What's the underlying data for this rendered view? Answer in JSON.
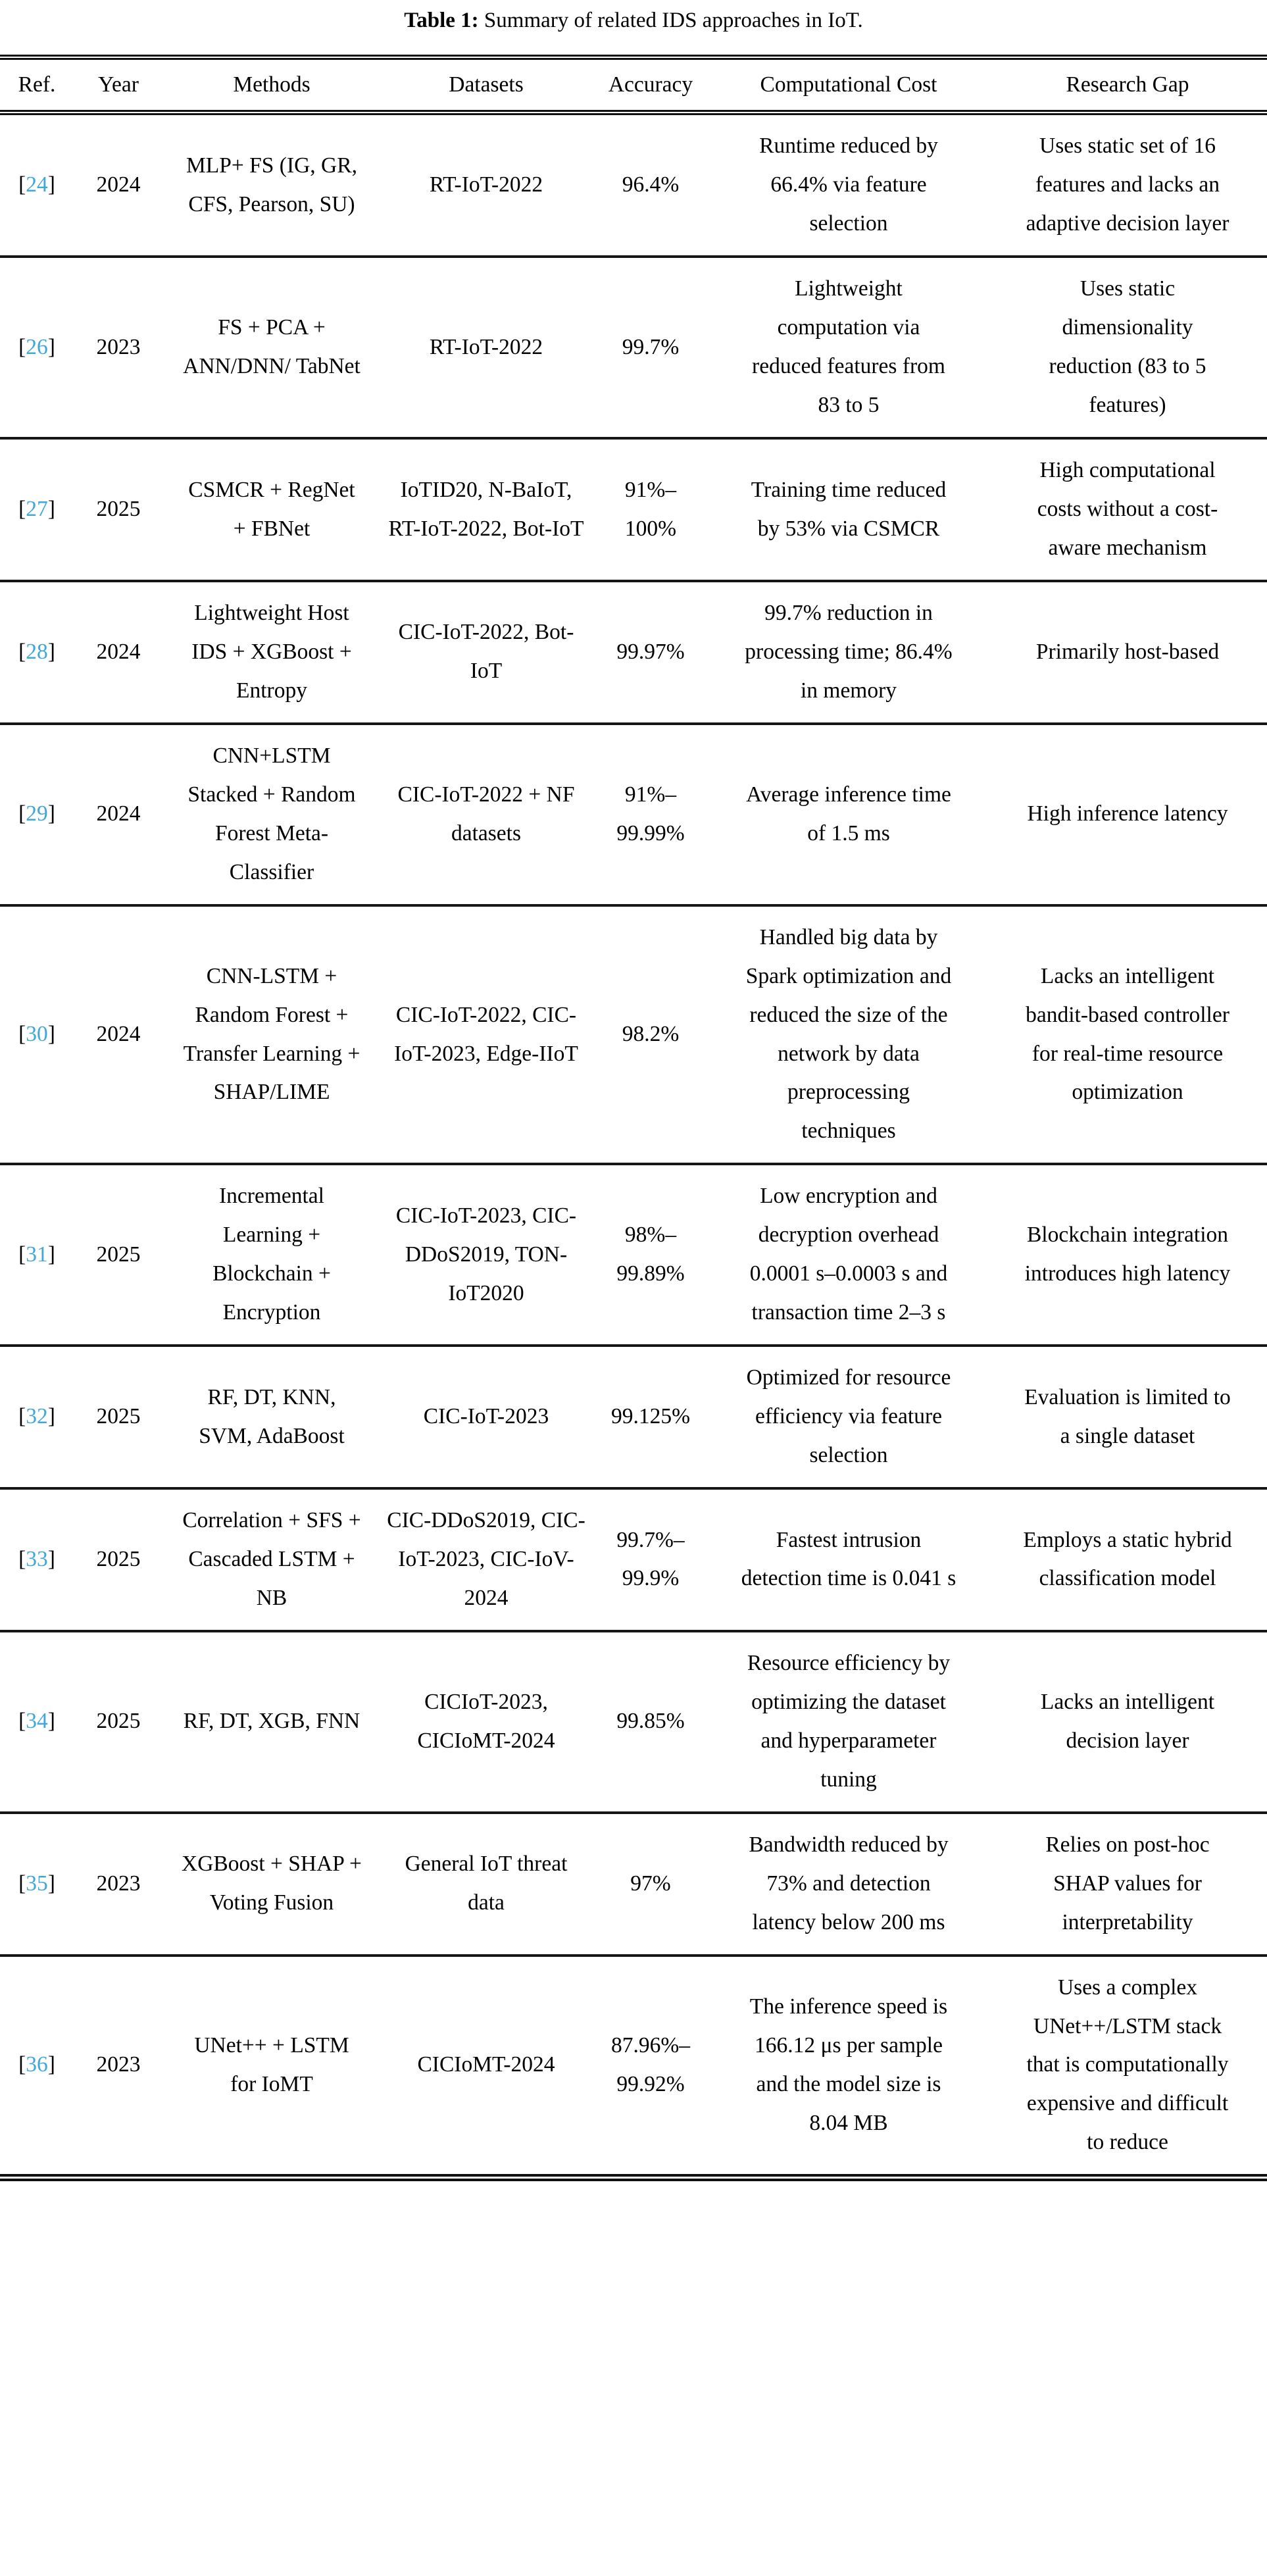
{
  "caption": {
    "label": "Table 1:",
    "text": "Summary of related IDS approaches in IoT."
  },
  "colors": {
    "citation_blue": "#41a7da",
    "text": "#000000",
    "rule": "#101010"
  },
  "table": {
    "brackets": {
      "open": "[",
      "close": "]"
    },
    "columns": [
      "Ref.",
      "Year",
      "Methods",
      "Datasets",
      "Accuracy",
      "Computational Cost",
      "Research Gap"
    ],
    "rows": [
      {
        "ref": "24",
        "year": "2024",
        "methods": "MLP+ FS (IG, GR, CFS, Pearson, SU)",
        "datasets": "RT-IoT-2022",
        "accuracy": "96.4%",
        "cost": "Runtime reduced by 66.4% via feature selection",
        "gap": "Uses static set of 16 features and lacks an adaptive decision layer"
      },
      {
        "ref": "26",
        "year": "2023",
        "methods": "FS + PCA + ANN/DNN/ TabNet",
        "datasets": "RT-IoT-2022",
        "accuracy": "99.7%",
        "cost": "Lightweight computation via reduced features from 83 to 5",
        "gap": "Uses static dimensionality reduction (83 to 5 features)"
      },
      {
        "ref": "27",
        "year": "2025",
        "methods": "CSMCR + RegNet + FBNet",
        "datasets": "IoTID20, N-BaIoT, RT-IoT-2022, Bot-IoT",
        "accuracy": "91%–\n100%",
        "cost": "Training time reduced by 53% via CSMCR",
        "gap": "High computational costs without a cost-aware mechanism"
      },
      {
        "ref": "28",
        "year": "2024",
        "methods": "Lightweight Host IDS + XGBoost + Entropy",
        "datasets": "CIC-IoT-2022, Bot-IoT",
        "accuracy": "99.97%",
        "cost": "99.7% reduction in processing time; 86.4% in memory",
        "gap": "Primarily host-based"
      },
      {
        "ref": "29",
        "year": "2024",
        "methods": "CNN+LSTM Stacked + Random Forest Meta-Classifier",
        "datasets": "CIC-IoT-2022 + NF datasets",
        "accuracy": "91%–\n99.99%",
        "cost": "Average inference time of 1.5 ms",
        "gap": "High inference latency"
      },
      {
        "ref": "30",
        "year": "2024",
        "methods": "CNN-LSTM + Random Forest + Transfer Learning + SHAP/LIME",
        "datasets": "CIC-IoT-2022, CIC-IoT-2023, Edge-IIoT",
        "accuracy": "98.2%",
        "cost": "Handled big data by Spark optimization and reduced the size of the network by data preprocessing techniques",
        "gap": "Lacks an intelligent bandit-based controller for real-time resource optimization"
      },
      {
        "ref": "31",
        "year": "2025",
        "methods": "Incremental Learning + Blockchain + Encryption",
        "datasets": "CIC-IoT-2023, CIC-DDoS2019, TON-IoT2020",
        "accuracy": "98%–\n99.89%",
        "cost": "Low encryption and decryption overhead 0.0001 s–0.0003 s and transaction time 2–3 s",
        "gap": "Blockchain integration introduces high latency"
      },
      {
        "ref": "32",
        "year": "2025",
        "methods": "RF, DT, KNN, SVM, AdaBoost",
        "datasets": "CIC-IoT-2023",
        "accuracy": "99.125%",
        "cost": "Optimized for resource efficiency via feature selection",
        "gap": "Evaluation is limited to a single dataset"
      },
      {
        "ref": "33",
        "year": "2025",
        "methods": "Correlation + SFS + Cascaded LSTM + NB",
        "datasets": "CIC-DDoS2019, CIC-IoT-2023, CIC-IoV-2024",
        "accuracy": "99.7%–\n99.9%",
        "cost": "Fastest intrusion detection time is 0.041 s",
        "gap": "Employs a static hybrid classification model"
      },
      {
        "ref": "34",
        "year": "2025",
        "methods": "RF, DT, XGB, FNN",
        "datasets": "CICIoT-2023, CICIoMT-2024",
        "accuracy": "99.85%",
        "cost": "Resource efficiency by optimizing the dataset and hyperparameter tuning",
        "gap": "Lacks an intelligent decision layer"
      },
      {
        "ref": "35",
        "year": "2023",
        "methods": "XGBoost + SHAP + Voting Fusion",
        "datasets": "General IoT threat data",
        "accuracy": "97%",
        "cost": "Bandwidth reduced by 73% and detection latency below 200 ms",
        "gap": "Relies on post-hoc SHAP values for interpretability"
      },
      {
        "ref": "36",
        "year": "2023",
        "methods": "UNet++ + LSTM for IoMT",
        "datasets": "CICIoMT-2024",
        "accuracy": "87.96%–\n99.92%",
        "cost": "The inference speed is 166.12 μs per sample and the model size is 8.04 MB",
        "gap": "Uses a complex UNet++/LSTM stack that is computationally expensive and difficult to reduce"
      }
    ]
  }
}
